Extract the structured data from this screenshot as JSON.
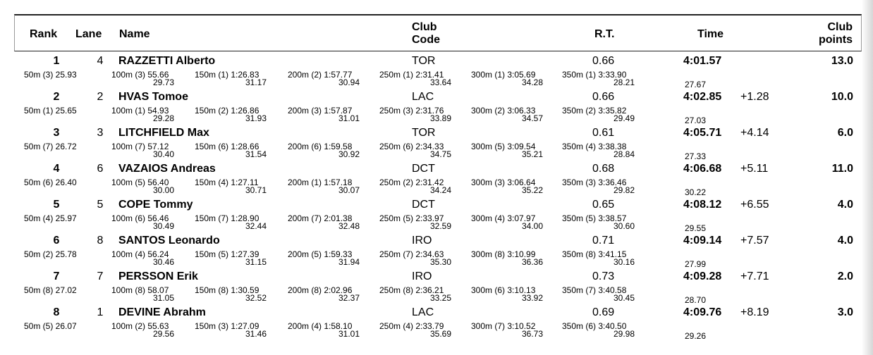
{
  "header": {
    "rank": "Rank",
    "lane": "Lane",
    "name": "Name",
    "club_line1": "Club",
    "club_line2": "Code",
    "rt": "R.T.",
    "time": "Time",
    "points_line1": "Club",
    "points_line2": "points"
  },
  "rows": [
    {
      "rank": "1",
      "lane": "4",
      "name": "RAZZETTI Alberto",
      "club": "TOR",
      "rt": "0.66",
      "time": "4:01.57",
      "behind": "",
      "points": "13.0",
      "splits": [
        {
          "label": "50m (3) 25.93",
          "sub": ""
        },
        {
          "label": "100m (3) 55.66",
          "sub": "29.73"
        },
        {
          "label": "150m (1) 1:26.83",
          "sub": "31.17"
        },
        {
          "label": "200m (2) 1:57.77",
          "sub": "30.94"
        },
        {
          "label": "250m (1) 2:31.41",
          "sub": "33.64"
        },
        {
          "label": "300m (1) 3:05.69",
          "sub": "34.28"
        },
        {
          "label": "350m (1) 3:33.90",
          "sub": "28.21"
        }
      ],
      "final_split": "27.67"
    },
    {
      "rank": "2",
      "lane": "2",
      "name": "HVAS Tomoe",
      "club": "LAC",
      "rt": "0.66",
      "time": "4:02.85",
      "behind": "+1.28",
      "points": "10.0",
      "splits": [
        {
          "label": "50m (1) 25.65",
          "sub": ""
        },
        {
          "label": "100m (1) 54.93",
          "sub": "29.28"
        },
        {
          "label": "150m (2) 1:26.86",
          "sub": "31.93"
        },
        {
          "label": "200m (3) 1:57.87",
          "sub": "31.01"
        },
        {
          "label": "250m (3) 2:31.76",
          "sub": "33.89"
        },
        {
          "label": "300m (2) 3:06.33",
          "sub": "34.57"
        },
        {
          "label": "350m (2) 3:35.82",
          "sub": "29.49"
        }
      ],
      "final_split": "27.03"
    },
    {
      "rank": "3",
      "lane": "3",
      "name": "LITCHFIELD Max",
      "club": "TOR",
      "rt": "0.61",
      "time": "4:05.71",
      "behind": "+4.14",
      "points": "6.0",
      "splits": [
        {
          "label": "50m (7) 26.72",
          "sub": ""
        },
        {
          "label": "100m (7) 57.12",
          "sub": "30.40"
        },
        {
          "label": "150m (6) 1:28.66",
          "sub": "31.54"
        },
        {
          "label": "200m (6) 1:59.58",
          "sub": "30.92"
        },
        {
          "label": "250m (6) 2:34.33",
          "sub": "34.75"
        },
        {
          "label": "300m (5) 3:09.54",
          "sub": "35.21"
        },
        {
          "label": "350m (4) 3:38.38",
          "sub": "28.84"
        }
      ],
      "final_split": "27.33"
    },
    {
      "rank": "4",
      "lane": "6",
      "name": "VAZAIOS Andreas",
      "club": "DCT",
      "rt": "0.68",
      "time": "4:06.68",
      "behind": "+5.11",
      "points": "11.0",
      "splits": [
        {
          "label": "50m (6) 26.40",
          "sub": ""
        },
        {
          "label": "100m (5) 56.40",
          "sub": "30.00"
        },
        {
          "label": "150m (4) 1:27.11",
          "sub": "30.71"
        },
        {
          "label": "200m (1) 1:57.18",
          "sub": "30.07"
        },
        {
          "label": "250m (2) 2:31.42",
          "sub": "34.24"
        },
        {
          "label": "300m (3) 3:06.64",
          "sub": "35.22"
        },
        {
          "label": "350m (3) 3:36.46",
          "sub": "29.82"
        }
      ],
      "final_split": "30.22"
    },
    {
      "rank": "5",
      "lane": "5",
      "name": "COPE Tommy",
      "club": "DCT",
      "rt": "0.65",
      "time": "4:08.12",
      "behind": "+6.55",
      "points": "4.0",
      "splits": [
        {
          "label": "50m (4) 25.97",
          "sub": ""
        },
        {
          "label": "100m (6) 56.46",
          "sub": "30.49"
        },
        {
          "label": "150m (7) 1:28.90",
          "sub": "32.44"
        },
        {
          "label": "200m (7) 2:01.38",
          "sub": "32.48"
        },
        {
          "label": "250m (5) 2:33.97",
          "sub": "32.59"
        },
        {
          "label": "300m (4) 3:07.97",
          "sub": "34.00"
        },
        {
          "label": "350m (5) 3:38.57",
          "sub": "30.60"
        }
      ],
      "final_split": "29.55"
    },
    {
      "rank": "6",
      "lane": "8",
      "name": "SANTOS Leonardo",
      "club": "IRO",
      "rt": "0.71",
      "time": "4:09.14",
      "behind": "+7.57",
      "points": "4.0",
      "splits": [
        {
          "label": "50m (2) 25.78",
          "sub": ""
        },
        {
          "label": "100m (4) 56.24",
          "sub": "30.46"
        },
        {
          "label": "150m (5) 1:27.39",
          "sub": "31.15"
        },
        {
          "label": "200m (5) 1:59.33",
          "sub": "31.94"
        },
        {
          "label": "250m (7) 2:34.63",
          "sub": "35.30"
        },
        {
          "label": "300m (8) 3:10.99",
          "sub": "36.36"
        },
        {
          "label": "350m (8) 3:41.15",
          "sub": "30.16"
        }
      ],
      "final_split": "27.99"
    },
    {
      "rank": "7",
      "lane": "7",
      "name": "PERSSON Erik",
      "club": "IRO",
      "rt": "0.73",
      "time": "4:09.28",
      "behind": "+7.71",
      "points": "2.0",
      "splits": [
        {
          "label": "50m (8) 27.02",
          "sub": ""
        },
        {
          "label": "100m (8) 58.07",
          "sub": "31.05"
        },
        {
          "label": "150m (8) 1:30.59",
          "sub": "32.52"
        },
        {
          "label": "200m (8) 2:02.96",
          "sub": "32.37"
        },
        {
          "label": "250m (8) 2:36.21",
          "sub": "33.25"
        },
        {
          "label": "300m (6) 3:10.13",
          "sub": "33.92"
        },
        {
          "label": "350m (7) 3:40.58",
          "sub": "30.45"
        }
      ],
      "final_split": "28.70"
    },
    {
      "rank": "8",
      "lane": "1",
      "name": "DEVINE Abrahm",
      "club": "LAC",
      "rt": "0.69",
      "time": "4:09.76",
      "behind": "+8.19",
      "points": "3.0",
      "splits": [
        {
          "label": "50m (5) 26.07",
          "sub": ""
        },
        {
          "label": "100m (2) 55.63",
          "sub": "29.56"
        },
        {
          "label": "150m (3) 1:27.09",
          "sub": "31.46"
        },
        {
          "label": "200m (4) 1:58.10",
          "sub": "31.01"
        },
        {
          "label": "250m (4) 2:33.79",
          "sub": "35.69"
        },
        {
          "label": "300m (7) 3:10.52",
          "sub": "36.73"
        },
        {
          "label": "350m (6) 3:40.50",
          "sub": "29.98"
        }
      ],
      "final_split": "29.26"
    }
  ]
}
